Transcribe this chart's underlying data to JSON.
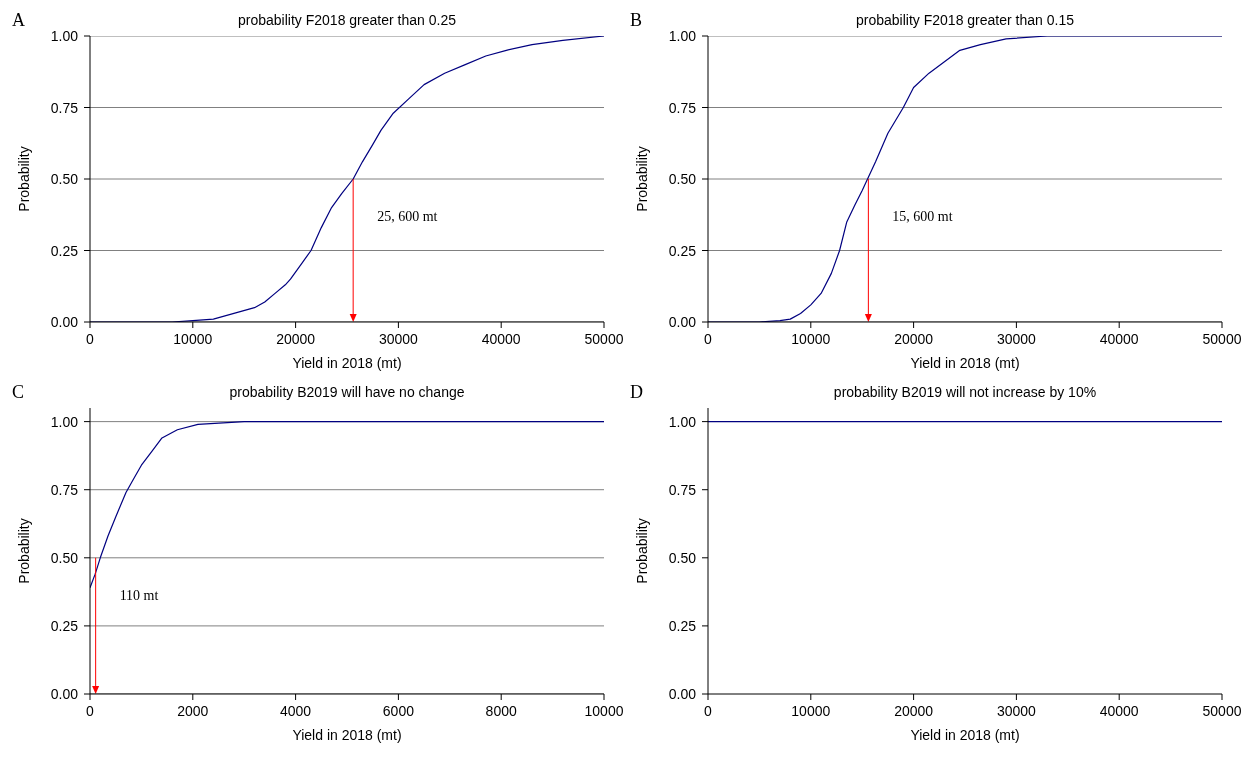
{
  "chart_data": [
    {
      "type": "line",
      "title": "probability F2018 greater than 0.25",
      "xlabel": "Yield in 2018 (mt)",
      "ylabel": "Probability",
      "annotations": [
        "A",
        {
          "text": "25, 600 mt",
          "x": 25600,
          "y": 0.5
        }
      ],
      "grid": "y",
      "marker": "none",
      "xlim": [
        0,
        50000
      ],
      "xticks": [
        0,
        10000,
        20000,
        30000,
        40000,
        50000
      ],
      "ylim": [
        0,
        1
      ],
      "yticks": [
        {
          "value": 0,
          "label": "0.00"
        },
        {
          "value": 0.25,
          "label": "0.25"
        },
        {
          "value": 0.5,
          "label": "0.50"
        },
        {
          "value": 0.75,
          "label": "0.75"
        },
        {
          "value": 1,
          "label": "1.00"
        }
      ],
      "series": [
        {
          "color": "#000080",
          "x": [
            0,
            8000,
            10000,
            12000,
            14000,
            16000,
            17000,
            18000,
            19000,
            19500,
            20500,
            21500,
            22500,
            23500,
            24500,
            25600,
            26500,
            27500,
            28300,
            29500,
            31000,
            32500,
            34500,
            36500,
            38500,
            40500,
            43000,
            46000,
            50000
          ],
          "values": [
            0,
            0,
            0.005,
            0.01,
            0.03,
            0.05,
            0.07,
            0.1,
            0.13,
            0.15,
            0.2,
            0.25,
            0.33,
            0.4,
            0.45,
            0.5,
            0.56,
            0.62,
            0.67,
            0.73,
            0.78,
            0.83,
            0.87,
            0.9,
            0.93,
            0.95,
            0.97,
            0.985,
            1
          ]
        }
      ]
    },
    {
      "type": "line",
      "title": "probability F2018 greater than 0.15",
      "xlabel": "Yield in 2018 (mt)",
      "ylabel": "Probability",
      "annotations": [
        "B",
        {
          "text": "15, 600 mt",
          "x": 15600,
          "y": 0.5
        }
      ],
      "grid": "y",
      "marker": "none",
      "xlim": [
        0,
        50000
      ],
      "xticks": [
        0,
        10000,
        20000,
        30000,
        40000,
        50000
      ],
      "ylim": [
        0,
        1
      ],
      "yticks": [
        {
          "value": 0,
          "label": "0.00"
        },
        {
          "value": 0.25,
          "label": "0.25"
        },
        {
          "value": 0.5,
          "label": "0.50"
        },
        {
          "value": 0.75,
          "label": "0.75"
        },
        {
          "value": 1,
          "label": "1.00"
        }
      ],
      "series": [
        {
          "color": "#000080",
          "x": [
            0,
            5000,
            7000,
            8000,
            9000,
            10000,
            11000,
            12000,
            12800,
            13500,
            14300,
            15000,
            16300,
            17500,
            19000,
            20000,
            21500,
            23000,
            24500,
            26500,
            29000,
            33000,
            50000
          ],
          "values": [
            0,
            0,
            0.005,
            0.01,
            0.03,
            0.06,
            0.1,
            0.17,
            0.25,
            0.35,
            0.41,
            0.46,
            0.56,
            0.66,
            0.75,
            0.82,
            0.87,
            0.91,
            0.95,
            0.97,
            0.99,
            1,
            1
          ]
        }
      ]
    },
    {
      "type": "line",
      "title": "probability B2019 will have no change",
      "xlabel": "Yield in 2018 (mt)",
      "ylabel": "Probability",
      "annotations": [
        "C",
        {
          "text": "110 mt",
          "x": 110,
          "y": 0.5
        }
      ],
      "grid": "y",
      "marker": "none",
      "xlim": [
        0,
        10000
      ],
      "xticks": [
        0,
        2000,
        4000,
        6000,
        8000,
        10000
      ],
      "ylim": [
        0,
        1.05
      ],
      "yticks": [
        {
          "value": 0,
          "label": "0.00"
        },
        {
          "value": 0.25,
          "label": "0.25"
        },
        {
          "value": 0.5,
          "label": "0.50"
        },
        {
          "value": 0.75,
          "label": "0.75"
        },
        {
          "value": 1,
          "label": "1.00"
        }
      ],
      "series": [
        {
          "color": "#000080",
          "x": [
            0,
            100,
            200,
            350,
            500,
            700,
            850,
            1000,
            1200,
            1400,
            1700,
            2100,
            3000,
            10000
          ],
          "values": [
            0.39,
            0.44,
            0.5,
            0.58,
            0.65,
            0.74,
            0.79,
            0.84,
            0.89,
            0.94,
            0.97,
            0.99,
            1,
            1
          ]
        }
      ]
    },
    {
      "type": "line",
      "title": "probability B2019 will not increase by 10%",
      "xlabel": "Yield in 2018 (mt)",
      "ylabel": "Probability",
      "annotations": [
        "D"
      ],
      "marker": "none",
      "xlim": [
        0,
        50000
      ],
      "xticks": [
        0,
        10000,
        20000,
        30000,
        40000,
        50000
      ],
      "ylim": [
        0,
        1.05
      ],
      "yticks": [
        {
          "value": 0,
          "label": "0.00"
        },
        {
          "value": 0.25,
          "label": "0.25"
        },
        {
          "value": 0.5,
          "label": "0.50"
        },
        {
          "value": 0.75,
          "label": "0.75"
        },
        {
          "value": 1,
          "label": "1.00"
        }
      ],
      "series": [
        {
          "color": "#000080",
          "x": [
            0,
            50000
          ],
          "values": [
            1,
            1
          ]
        }
      ]
    }
  ]
}
